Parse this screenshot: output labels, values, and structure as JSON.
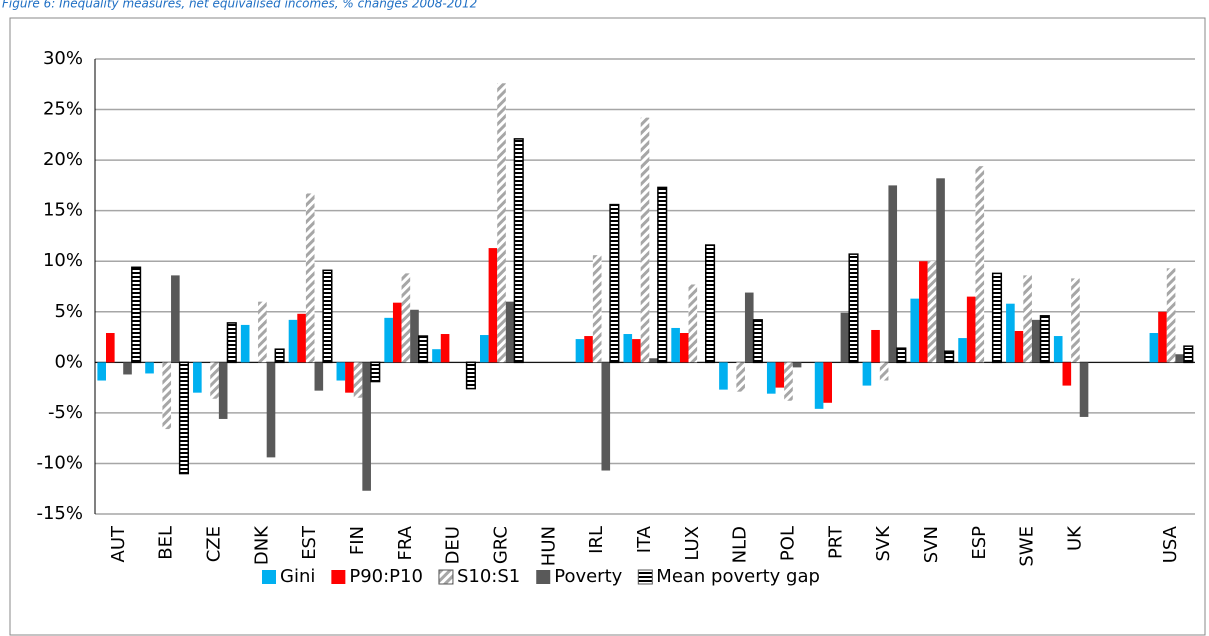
{
  "chart_data": {
    "type": "bar",
    "title": "Figure 6: Inequality measures, net equivalised incomes, % changes 2008-2012",
    "categories": [
      "AUT",
      "BEL",
      "CZE",
      "DNK",
      "EST",
      "FIN",
      "FRA",
      "DEU",
      "GRC",
      "HUN",
      "IRL",
      "ITA",
      "LUX",
      "NLD",
      "POL",
      "PRT",
      "SVK",
      "SVN",
      "ESP",
      "SWE",
      "UK",
      null,
      "USA"
    ],
    "series": [
      {
        "name": "Gini",
        "color": "#00b0f0",
        "pattern": "solid",
        "values": [
          -1.8,
          -1.1,
          -3.0,
          3.7,
          4.2,
          -1.8,
          4.4,
          1.3,
          2.7,
          null,
          2.3,
          2.8,
          3.4,
          -2.7,
          -3.1,
          -4.6,
          -2.3,
          6.3,
          2.4,
          5.8,
          2.6,
          null,
          2.9
        ]
      },
      {
        "name": "P90:P10",
        "color": "#ff0000",
        "pattern": "solid",
        "values": [
          2.9,
          null,
          null,
          null,
          4.8,
          -3.0,
          5.9,
          2.8,
          11.3,
          null,
          2.6,
          2.3,
          2.9,
          null,
          -2.5,
          -4.0,
          3.2,
          10.0,
          6.5,
          3.1,
          -2.3,
          null,
          5.0
        ]
      },
      {
        "name": "S10:S1",
        "color": "#a6a6a6",
        "pattern": "diagonal",
        "values": [
          null,
          -6.6,
          -3.6,
          6.0,
          16.7,
          -3.5,
          8.8,
          null,
          27.6,
          null,
          10.6,
          24.2,
          7.7,
          -2.9,
          -3.8,
          null,
          -1.8,
          10.0,
          19.4,
          8.6,
          8.3,
          null,
          9.3
        ]
      },
      {
        "name": "Poverty",
        "color": "#595959",
        "pattern": "solid",
        "values": [
          -1.2,
          8.6,
          -5.6,
          -9.4,
          -2.8,
          -12.7,
          5.2,
          null,
          6.0,
          null,
          -10.7,
          0.4,
          null,
          6.9,
          -0.5,
          4.9,
          17.5,
          18.2,
          null,
          4.2,
          -5.4,
          null,
          0.8
        ]
      },
      {
        "name": "Mean poverty gap",
        "color": "#000000",
        "pattern": "horizontal",
        "values": [
          9.4,
          -11.0,
          3.9,
          1.3,
          9.1,
          -1.9,
          2.6,
          -2.6,
          22.1,
          null,
          15.6,
          17.3,
          11.6,
          4.2,
          null,
          10.7,
          1.4,
          1.1,
          8.8,
          4.6,
          null,
          null,
          1.6
        ]
      }
    ],
    "ylim": [
      -15,
      30
    ],
    "yticks": [
      {
        "value": -15,
        "label": "-15%"
      },
      {
        "value": -10,
        "label": "-10%"
      },
      {
        "value": -5,
        "label": "-5%"
      },
      {
        "value": 0,
        "label": "0%"
      },
      {
        "value": 5,
        "label": "5%"
      },
      {
        "value": 10,
        "label": "10%"
      },
      {
        "value": 15,
        "label": "15%"
      },
      {
        "value": 20,
        "label": "20%"
      },
      {
        "value": 25,
        "label": "25%"
      },
      {
        "value": 30,
        "label": "30%"
      }
    ],
    "grid": true,
    "legend": "bottom"
  }
}
